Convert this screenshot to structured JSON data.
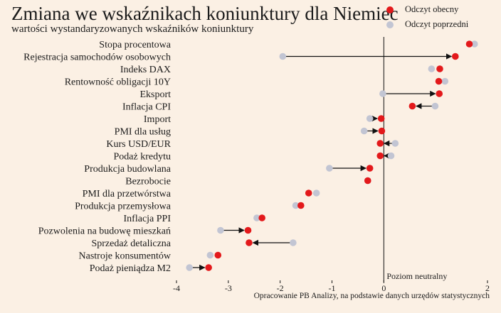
{
  "title": "Zmiana we wskaźnikach koniunktury dla Niemiec",
  "subtitle": "wartości wystandaryzowanych wskaźników koniunktury",
  "source": "Opracowanie PB Analizy, na podstawie danych urzędów statystycznych",
  "colors": {
    "current": "#e3191b",
    "previous": "#c2c5d3",
    "background": "#fbf0e4",
    "arrow": "#111111"
  },
  "chart_data": {
    "type": "dumbbell",
    "legend": [
      {
        "name": "Odczyt obecny",
        "color": "#e3191b"
      },
      {
        "name": "Odczyt poprzedni",
        "color": "#c2c5d3"
      }
    ],
    "legend_position": "top-right",
    "xlim": [
      -4,
      2
    ],
    "xticks": [
      "-4",
      "-3",
      "-2",
      "-1",
      "0",
      "2"
    ],
    "reference_line": {
      "x": 0,
      "label": "Poziom neutralny"
    },
    "grid": false,
    "categories": [
      {
        "label": "Stopa procentowa",
        "previous": 1.75,
        "current": 1.65
      },
      {
        "label": "Rejestracja samochodów osobowych",
        "previous": -1.95,
        "current": 1.38
      },
      {
        "label": "Indeks DAX",
        "previous": 0.92,
        "current": 1.08
      },
      {
        "label": "Rentowność obligacji 10Y",
        "previous": 1.18,
        "current": 1.06
      },
      {
        "label": "Eksport",
        "previous": -0.02,
        "current": 1.07
      },
      {
        "label": "Inflacja CPI",
        "previous": 0.99,
        "current": 0.55
      },
      {
        "label": "Import",
        "previous": -0.27,
        "current": -0.05
      },
      {
        "label": "PMI dla usług",
        "previous": -0.38,
        "current": -0.04
      },
      {
        "label": "Kurs USD/EUR",
        "previous": 0.22,
        "current": -0.07
      },
      {
        "label": "Podaż kredytu",
        "previous": 0.14,
        "current": -0.07
      },
      {
        "label": "Produkcja budowlana",
        "previous": -1.05,
        "current": -0.27
      },
      {
        "label": "Bezrobocie",
        "previous": -0.31,
        "current": -0.31
      },
      {
        "label": "PMI dla przetwórstwa",
        "previous": -1.3,
        "current": -1.45
      },
      {
        "label": "Produkcja przemysłowa",
        "previous": -1.7,
        "current": -1.6
      },
      {
        "label": "Inflacja PPI",
        "previous": -2.45,
        "current": -2.35
      },
      {
        "label": "Pozwolenia na budowę mieszkań",
        "previous": -3.15,
        "current": -2.62
      },
      {
        "label": "Sprzedaż detaliczna",
        "previous": -1.75,
        "current": -2.6
      },
      {
        "label": "Nastroje konsumentów",
        "previous": -3.35,
        "current": -3.2
      },
      {
        "label": "Podaż pieniądza M2",
        "previous": -3.75,
        "current": -3.38
      }
    ]
  }
}
